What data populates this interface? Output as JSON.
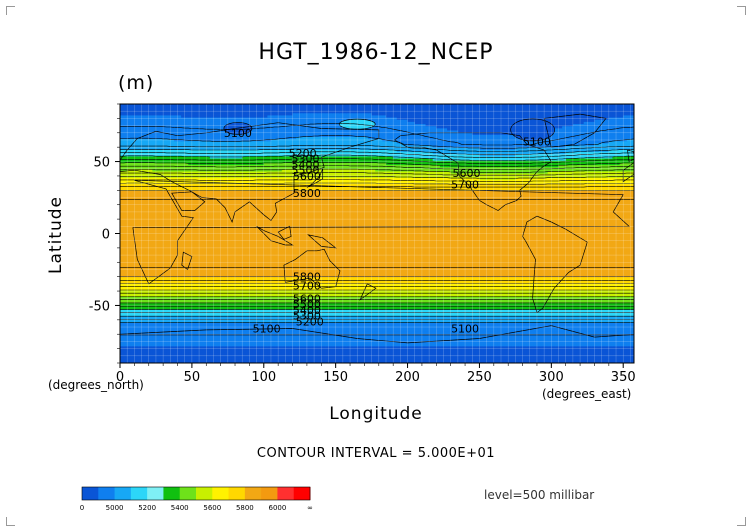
{
  "chart_data": {
    "type": "heatmap",
    "title": "HGT_1986-12_NCEP",
    "units": "(m)",
    "xlabel": "Longitude",
    "ylabel": "Latitude",
    "x_unit": "(degrees_east)",
    "y_unit": "(degrees_north)",
    "xlim": [
      0,
      357.5
    ],
    "ylim": [
      -90,
      90
    ],
    "x_ticks": [
      0,
      50,
      100,
      150,
      200,
      250,
      300,
      350
    ],
    "y_ticks": [
      50,
      0,
      -50
    ],
    "grid": true,
    "contour_interval_text": "CONTOUR INTERVAL = 5.000E+01",
    "level_text": "level=500 millibar",
    "colorbar": {
      "boundaries": [
        "0",
        "5000",
        "5200",
        "5400",
        "5600",
        "5800",
        "6000",
        "∞"
      ],
      "colors": [
        "#0a55d6",
        "#0f7fef",
        "#17a8f5",
        "#2cd6f8",
        "#7ff0f5",
        "#10c010",
        "#6ee21a",
        "#c8f000",
        "#fff200",
        "#ffd800",
        "#f2a814",
        "#f39a10",
        "#ff3030",
        "#ff0000"
      ]
    },
    "contour_labels": [
      {
        "lon": 82,
        "lat": 70,
        "text": "5100"
      },
      {
        "lon": 290,
        "lat": 64,
        "text": "5100"
      },
      {
        "lon": 127,
        "lat": 56,
        "text": "5200"
      },
      {
        "lon": 129,
        "lat": 52,
        "text": "5300"
      },
      {
        "lon": 129,
        "lat": 48,
        "text": "5400"
      },
      {
        "lon": 129,
        "lat": 44,
        "text": "5500"
      },
      {
        "lon": 130,
        "lat": 40,
        "text": "5600"
      },
      {
        "lon": 130,
        "lat": 28,
        "text": "5800"
      },
      {
        "lon": 241,
        "lat": 42,
        "text": "5600"
      },
      {
        "lon": 240,
        "lat": 34,
        "text": "5700"
      },
      {
        "lon": 130,
        "lat": -30,
        "text": "5800"
      },
      {
        "lon": 130,
        "lat": -36,
        "text": "5700"
      },
      {
        "lon": 130,
        "lat": -45,
        "text": "5600"
      },
      {
        "lon": 130,
        "lat": -49,
        "text": "5500"
      },
      {
        "lon": 130,
        "lat": -53,
        "text": "5400"
      },
      {
        "lon": 130,
        "lat": -57,
        "text": "5300"
      },
      {
        "lon": 132,
        "lat": -61,
        "text": "5200"
      },
      {
        "lon": 102,
        "lat": -66,
        "text": "5100"
      },
      {
        "lon": 240,
        "lat": -66,
        "text": "5100"
      }
    ]
  }
}
